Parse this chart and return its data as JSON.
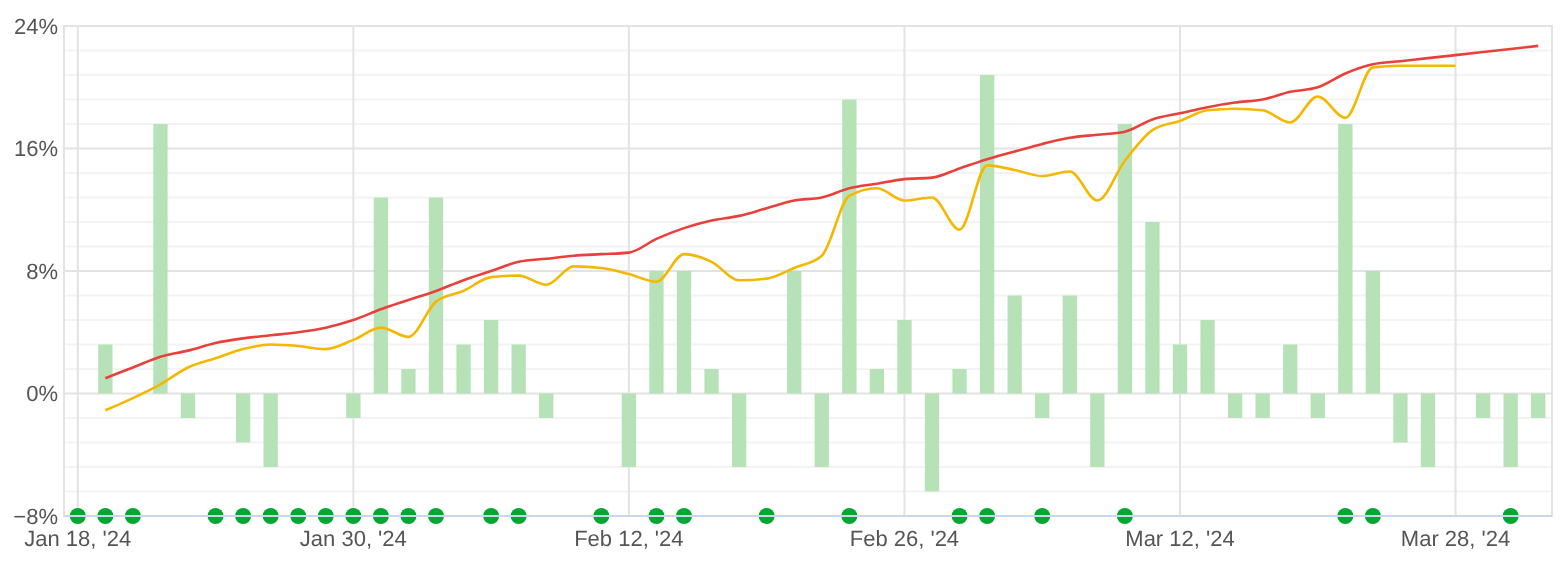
{
  "chart_data": {
    "type": "bar",
    "categories": [
      "Jan 18, '24",
      null,
      null,
      null,
      null,
      null,
      null,
      null,
      null,
      null,
      "Jan 30, '24",
      null,
      null,
      null,
      null,
      null,
      null,
      null,
      null,
      null,
      "Feb 12, '24",
      null,
      null,
      null,
      null,
      null,
      null,
      null,
      null,
      null,
      "Feb 26, '24",
      null,
      null,
      null,
      null,
      null,
      null,
      null,
      null,
      null,
      "Mar 12, '24",
      null,
      null,
      null,
      null,
      null,
      null,
      null,
      null,
      null,
      "Mar 28, '24",
      null,
      null,
      null
    ],
    "series": [
      {
        "color": "#b3e0b3",
        "values": [
          null,
          3.2,
          null,
          17.6,
          -1.6,
          0,
          -3.2,
          -4.8,
          null,
          0,
          -1.6,
          12.8,
          1.6,
          12.8,
          3.2,
          4.8,
          3.2,
          -1.6,
          0,
          null,
          -4.8,
          8,
          8,
          1.6,
          -4.8,
          null,
          8,
          -4.8,
          19.2,
          1.6,
          4.8,
          -6.4,
          1.6,
          20.8,
          6.4,
          -1.6,
          6.4,
          -4.8,
          17.6,
          11.2,
          3.2,
          4.8,
          -1.6,
          -1.6,
          3.2,
          -1.6,
          17.6,
          8,
          -3.2,
          -4.8,
          0,
          -1.6,
          -4.8,
          -1.6
        ]
      },
      {
        "type": "line",
        "color": "#e8413c",
        "values": [
          null,
          1.0,
          1.7,
          2.4,
          2.8,
          3.3,
          3.6,
          3.8,
          4.0,
          4.3,
          4.8,
          5.5,
          6.1,
          6.7,
          7.4,
          8.0,
          8.6,
          8.8,
          9.0,
          9.1,
          9.2,
          10.1,
          10.8,
          11.3,
          11.6,
          12.1,
          12.6,
          12.8,
          13.4,
          13.7,
          14.0,
          14.1,
          14.7,
          15.3,
          15.8,
          16.3,
          16.7,
          16.9,
          17.1,
          17.9,
          18.3,
          18.7,
          19.0,
          19.2,
          19.7,
          20.0,
          20.9,
          21.5,
          21.7,
          21.9,
          22.1,
          22.3,
          22.5,
          22.7
        ]
      },
      {
        "type": "line",
        "color": "#f5b800",
        "values": [
          null,
          -1.1,
          -0.3,
          0.6,
          1.7,
          2.3,
          2.9,
          3.2,
          3.1,
          2.9,
          3.5,
          4.3,
          3.7,
          6.0,
          6.7,
          7.6,
          7.7,
          7.1,
          8.3,
          8.2,
          7.8,
          7.3,
          9.1,
          8.6,
          7.4,
          7.5,
          8.2,
          9.0,
          12.9,
          13.4,
          12.6,
          12.8,
          10.7,
          14.9,
          14.6,
          14.2,
          14.5,
          12.6,
          15.2,
          17.2,
          17.8,
          18.5,
          18.6,
          18.5,
          17.7,
          19.4,
          18.0,
          21.3,
          21.4,
          21.4,
          21.4,
          null,
          null,
          null
        ]
      },
      {
        "type": "scatter",
        "marker": "circle",
        "color": "#00a832",
        "values": [
          -8,
          -8,
          -8,
          null,
          null,
          -8,
          -8,
          -8,
          -8,
          -8,
          -8,
          -8,
          -8,
          -8,
          null,
          -8,
          -8,
          null,
          null,
          -8,
          null,
          -8,
          -8,
          null,
          null,
          -8,
          null,
          null,
          -8,
          null,
          null,
          null,
          -8,
          -8,
          null,
          -8,
          null,
          null,
          -8,
          null,
          null,
          null,
          null,
          null,
          null,
          null,
          -8,
          -8,
          null,
          null,
          null,
          null,
          -8,
          null
        ]
      }
    ],
    "ylim": [
      -8,
      24
    ],
    "yticks": [
      {
        "value": -8,
        "label": "−8%"
      },
      {
        "value": -6.4,
        "label": null
      },
      {
        "value": -4.8,
        "label": null
      },
      {
        "value": -3.2,
        "label": null
      },
      {
        "value": -1.6,
        "label": null
      },
      {
        "value": 0,
        "label": "0%"
      },
      {
        "value": 1.6,
        "label": null
      },
      {
        "value": 3.2,
        "label": null
      },
      {
        "value": 4.8,
        "label": null
      },
      {
        "value": 6.4,
        "label": null
      },
      {
        "value": 8,
        "label": "8%"
      },
      {
        "value": 9.6,
        "label": null
      },
      {
        "value": 11.2,
        "label": null
      },
      {
        "value": 12.8,
        "label": null
      },
      {
        "value": 14.4,
        "label": null
      },
      {
        "value": 16,
        "label": "16%"
      },
      {
        "value": 17.6,
        "label": null
      },
      {
        "value": 19.2,
        "label": null
      },
      {
        "value": 20.8,
        "label": null
      },
      {
        "value": 22.4,
        "label": null
      },
      {
        "value": 24,
        "label": "24%"
      }
    ],
    "grid": true
  }
}
